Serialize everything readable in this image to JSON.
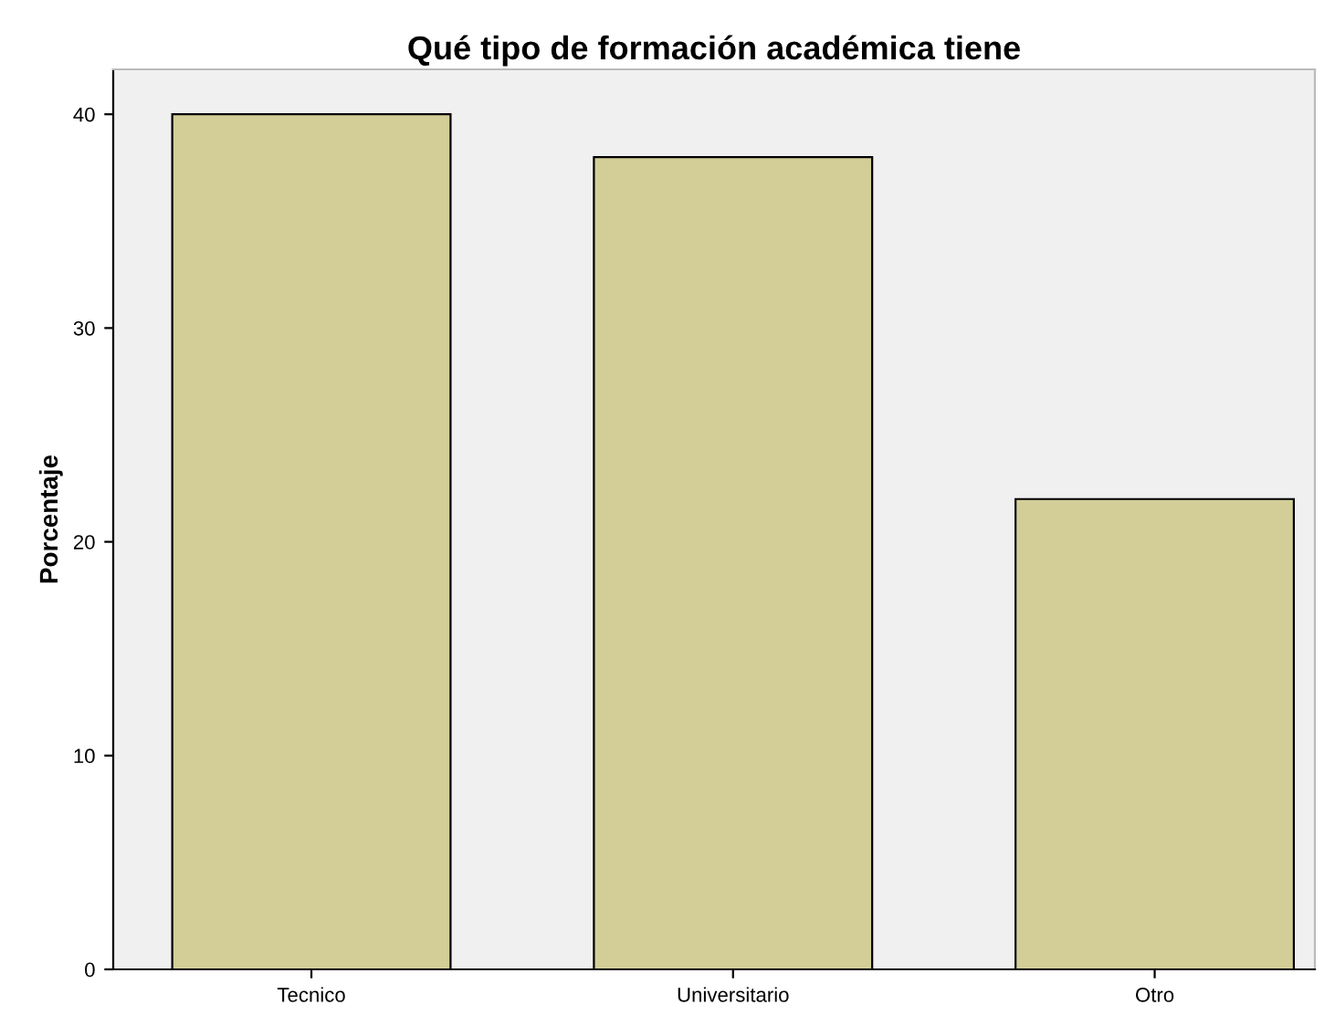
{
  "chart_data": {
    "type": "bar",
    "title": "Qué tipo de formación académica tiene",
    "ylabel": "Porcentaje",
    "categories": [
      "Tecnico",
      "Universitario",
      "Otro"
    ],
    "values": [
      40,
      38,
      22
    ],
    "color": "#d3ce97",
    "ylim": [
      0,
      42.1
    ],
    "yticks": [
      0,
      10,
      20,
      30,
      40
    ],
    "grid": false
  }
}
